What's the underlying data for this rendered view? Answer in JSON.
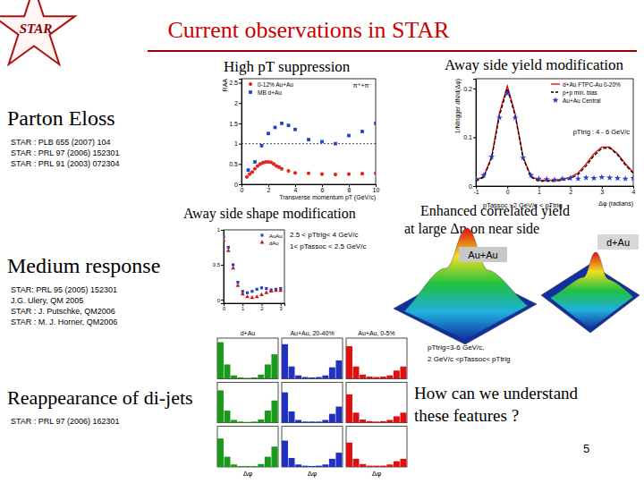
{
  "slide": {
    "title": "Current observations in STAR",
    "logo": "STAR",
    "headings": [
      "High pT suppression",
      "Away side yield modification",
      "Away side shape modification",
      "Enhanced correlated yield",
      "at large Δη on near side"
    ],
    "topics": [
      {
        "label": "Parton Eloss",
        "refs": [
          "STAR : PLB 655 (2007) 104",
          "STAR : PRL 97 (2006) 152301",
          "STAR : PRL 91 (2003) 072304"
        ]
      },
      {
        "label": "Medium response",
        "refs": [
          "STAR: PRL 95 (2005) 152301",
          "J.G. Ulery, QM 2005",
          "STAR : J. Putschke, QM2006",
          "STAR : M. J. Horner, QM2006"
        ]
      },
      {
        "label": "Reappearance of di-jets",
        "refs": [
          "STAR : PRL 97 (2006) 162301"
        ]
      }
    ],
    "question": [
      "How can we understand",
      "these features ?"
    ],
    "page": "5",
    "surface_labels": [
      "Au+Au",
      "d+Au"
    ],
    "dijet_note": [
      "pTtrig=3-6 GeV/c,",
      "2 GeV/c <pTassoc< pTtrig"
    ]
  },
  "chart_data": [
    {
      "type": "scatter",
      "x_label": "Transverse momentum pT (GeV/c)",
      "y_label": "RAA",
      "annotations": [
        "π⁺+π⁻"
      ],
      "xlim": [
        0,
        10
      ],
      "xticks": [
        0,
        2,
        4,
        6,
        8,
        10
      ],
      "ylim": [
        0,
        2.6
      ],
      "yticks": [
        0,
        0.5,
        1,
        1.5,
        2,
        2.5
      ],
      "reference_lines": [
        1
      ],
      "legend": "top-left",
      "series": [
        {
          "name": "0-12% Au+Au",
          "color": "#e8231f",
          "marker": "circle",
          "x": [
            0.4,
            0.6,
            0.8,
            1,
            1.2,
            1.4,
            1.6,
            1.8,
            2,
            2.2,
            2.4,
            2.6,
            2.8,
            3,
            3.5,
            4,
            5,
            6,
            7,
            8,
            9,
            10
          ],
          "values": [
            0.18,
            0.25,
            0.3,
            0.38,
            0.45,
            0.5,
            0.53,
            0.55,
            0.55,
            0.54,
            0.5,
            0.45,
            0.42,
            0.38,
            0.33,
            0.28,
            0.27,
            0.25,
            0.24,
            0.25,
            0.26,
            0.27
          ]
        },
        {
          "name": "MB d+Au",
          "color": "#1f3fd0",
          "marker": "square",
          "x": [
            0.5,
            1,
            1.5,
            2,
            2.5,
            3,
            3.5,
            4,
            5,
            6,
            7,
            8,
            9,
            10
          ],
          "values": [
            0.35,
            0.55,
            0.95,
            1.25,
            1.4,
            1.5,
            1.45,
            1.35,
            1.1,
            1.05,
            1.0,
            1.2,
            1.3,
            1.5
          ]
        }
      ]
    },
    {
      "type": "line",
      "x_label": "Δφ (radians)",
      "y_label": "1/Ntrigger dN/d(Δφ)",
      "annotations": [
        "pTtrig : 4 - 6 GeV/c",
        "pTassoc : 2 GeV/c < pTtrig"
      ],
      "x": [
        -1,
        -0.75,
        -0.5,
        -0.25,
        0,
        0.25,
        0.5,
        0.75,
        1,
        1.25,
        1.5,
        1.75,
        2,
        2.25,
        2.5,
        2.75,
        3,
        3.25,
        3.5,
        3.75,
        4
      ],
      "xlim": [
        -1,
        4
      ],
      "xticks": [
        -1,
        0,
        1,
        2,
        3,
        4
      ],
      "ylim": [
        0,
        0.22
      ],
      "yticks": [
        0,
        0.1,
        0.2
      ],
      "legend": "top-right",
      "series": [
        {
          "name": "d+Au FTPC-Au 0-20%",
          "color": "#e00000",
          "type": "line",
          "line_style": "solid",
          "values": [
            0.012,
            0.02,
            0.06,
            0.15,
            0.205,
            0.148,
            0.06,
            0.02,
            0.012,
            0.012,
            0.012,
            0.014,
            0.018,
            0.027,
            0.045,
            0.066,
            0.08,
            0.08,
            0.066,
            0.046,
            0.028
          ]
        },
        {
          "name": "p+p min. bias",
          "color": "#000000",
          "type": "line",
          "line_style": "dashed",
          "values": [
            0.01,
            0.018,
            0.057,
            0.144,
            0.2,
            0.144,
            0.057,
            0.018,
            0.01,
            0.01,
            0.01,
            0.012,
            0.015,
            0.024,
            0.041,
            0.062,
            0.077,
            0.078,
            0.064,
            0.043,
            0.026
          ]
        },
        {
          "name": "Au+Au Central",
          "color": "#1f3fd0",
          "type": "scatter",
          "marker": "star",
          "values": [
            0.015,
            0.022,
            0.06,
            0.14,
            0.19,
            0.14,
            0.058,
            0.022,
            0.015,
            0.014,
            0.013,
            0.015,
            0.016,
            0.015,
            0.017,
            0.016,
            0.018,
            0.017,
            0.016,
            0.015,
            0.016
          ]
        }
      ]
    },
    {
      "type": "scatter",
      "annotations": [
        "2.5 < pTtrig< 4 GeV/c",
        "1< pTassoc < 2.5 GeV/c"
      ],
      "x": [
        0,
        0.25,
        0.5,
        0.75,
        1,
        1.25,
        1.5,
        1.75,
        2,
        2.25,
        2.5,
        2.75,
        3
      ],
      "xlim": [
        0,
        3.2
      ],
      "xticks": [
        0,
        1,
        2,
        3
      ],
      "ylim": [
        -0.05,
        1.0
      ],
      "yticks": [
        0,
        0.5,
        1
      ],
      "legend": "top-right",
      "series": [
        {
          "name": "AuAu",
          "color": "#2040d0",
          "marker": "square",
          "values": [
            0.9,
            0.75,
            0.5,
            0.25,
            0.12,
            0.1,
            0.12,
            0.15,
            0.17,
            0.16,
            0.14,
            0.15,
            0.16
          ]
        },
        {
          "name": "dAu",
          "color": "#d01010",
          "marker": "triangle",
          "values": [
            0.85,
            0.7,
            0.45,
            0.2,
            0.08,
            0.04,
            0.03,
            0.04,
            0.07,
            0.1,
            0.12,
            0.13,
            0.13
          ]
        }
      ]
    },
    {
      "type": "histogram",
      "x_label": "Δφ",
      "bins": [
        0,
        0.35,
        0.7,
        1.05,
        1.4,
        1.75,
        2.1,
        2.45,
        2.8,
        3.15
      ],
      "ylim": [
        0,
        1
      ],
      "tick_labels": false,
      "series": [
        {
          "name": "d+Au",
          "color": "#1a9a1a",
          "panels": [
            [
              0.9,
              0.35,
              0.08,
              0.03,
              0.02,
              0.03,
              0.1,
              0.35,
              0.6
            ],
            [
              0.8,
              0.3,
              0.07,
              0.03,
              0.02,
              0.03,
              0.08,
              0.3,
              0.55
            ],
            [
              0.7,
              0.25,
              0.06,
              0.02,
              0.02,
              0.02,
              0.07,
              0.25,
              0.5
            ]
          ]
        },
        {
          "name": "Au+Au, 20-40%",
          "color": "#2030c0",
          "panels": [
            [
              0.85,
              0.3,
              0.08,
              0.04,
              0.03,
              0.04,
              0.08,
              0.28,
              0.45
            ],
            [
              0.75,
              0.28,
              0.07,
              0.03,
              0.03,
              0.03,
              0.07,
              0.22,
              0.4
            ],
            [
              0.65,
              0.22,
              0.06,
              0.03,
              0.02,
              0.03,
              0.06,
              0.2,
              0.35
            ]
          ]
        },
        {
          "name": "Au+Au, 0-5%",
          "color": "#e01010",
          "panels": [
            [
              0.8,
              0.3,
              0.1,
              0.05,
              0.04,
              0.05,
              0.08,
              0.2,
              0.3
            ],
            [
              0.7,
              0.25,
              0.08,
              0.04,
              0.03,
              0.04,
              0.07,
              0.16,
              0.25
            ],
            [
              0.6,
              0.2,
              0.07,
              0.03,
              0.03,
              0.03,
              0.06,
              0.14,
              0.2
            ]
          ]
        }
      ]
    }
  ]
}
